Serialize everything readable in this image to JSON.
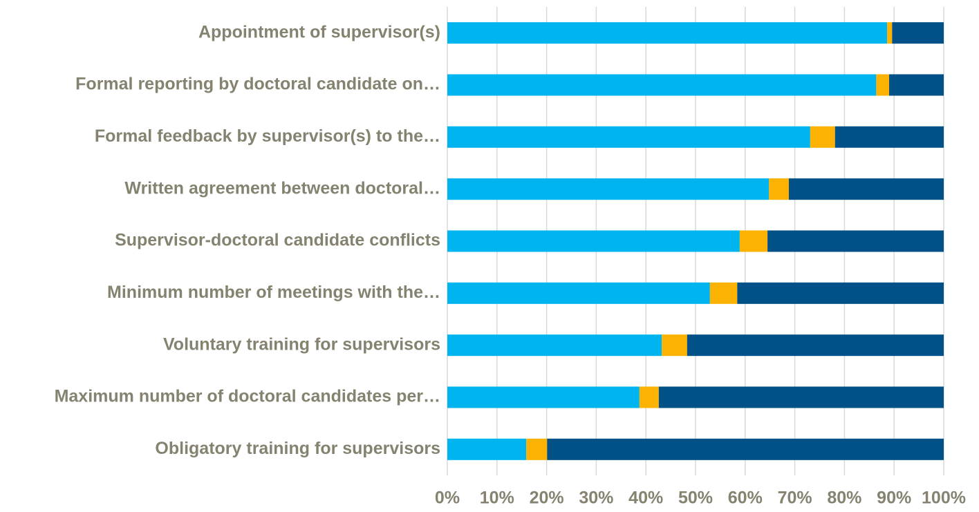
{
  "chart_data": {
    "type": "stacked_barh",
    "categories": [
      "Appointment of supervisor(s)",
      "Formal reporting by doctoral candidate on…",
      "Formal feedback by supervisor(s) to the…",
      "Written agreement between doctoral…",
      "Supervisor-doctoral candidate conflicts",
      "Minimum number of meetings with the…",
      "Voluntary training for supervisors",
      "Maximum number of doctoral candidates per…",
      "Obligatory training for supervisors"
    ],
    "series": [
      {
        "color": "#00b4ef",
        "values": [
          88.6,
          86.4,
          73.1,
          64.8,
          58.9,
          52.9,
          43.2,
          38.7,
          15.9
        ]
      },
      {
        "color": "#fbb202",
        "values": [
          1.0,
          2.6,
          5.0,
          4.0,
          5.6,
          5.5,
          5.1,
          3.9,
          4.2
        ]
      },
      {
        "color": "#005187",
        "values": [
          10.4,
          11.0,
          21.9,
          31.2,
          35.5,
          41.6,
          51.7,
          57.4,
          79.9
        ]
      }
    ],
    "xlim": [
      0,
      100
    ],
    "xticks": [
      {
        "value": 0,
        "label": "0%"
      },
      {
        "value": 10,
        "label": "10%"
      },
      {
        "value": 20,
        "label": "20%"
      },
      {
        "value": 30,
        "label": "30%"
      },
      {
        "value": 40,
        "label": "40%"
      },
      {
        "value": 50,
        "label": "50%"
      },
      {
        "value": 60,
        "label": "60%"
      },
      {
        "value": 70,
        "label": "70%"
      },
      {
        "value": 80,
        "label": "80%"
      },
      {
        "value": 90,
        "label": "90%"
      },
      {
        "value": 100,
        "label": "100%"
      }
    ],
    "grid": true
  }
}
